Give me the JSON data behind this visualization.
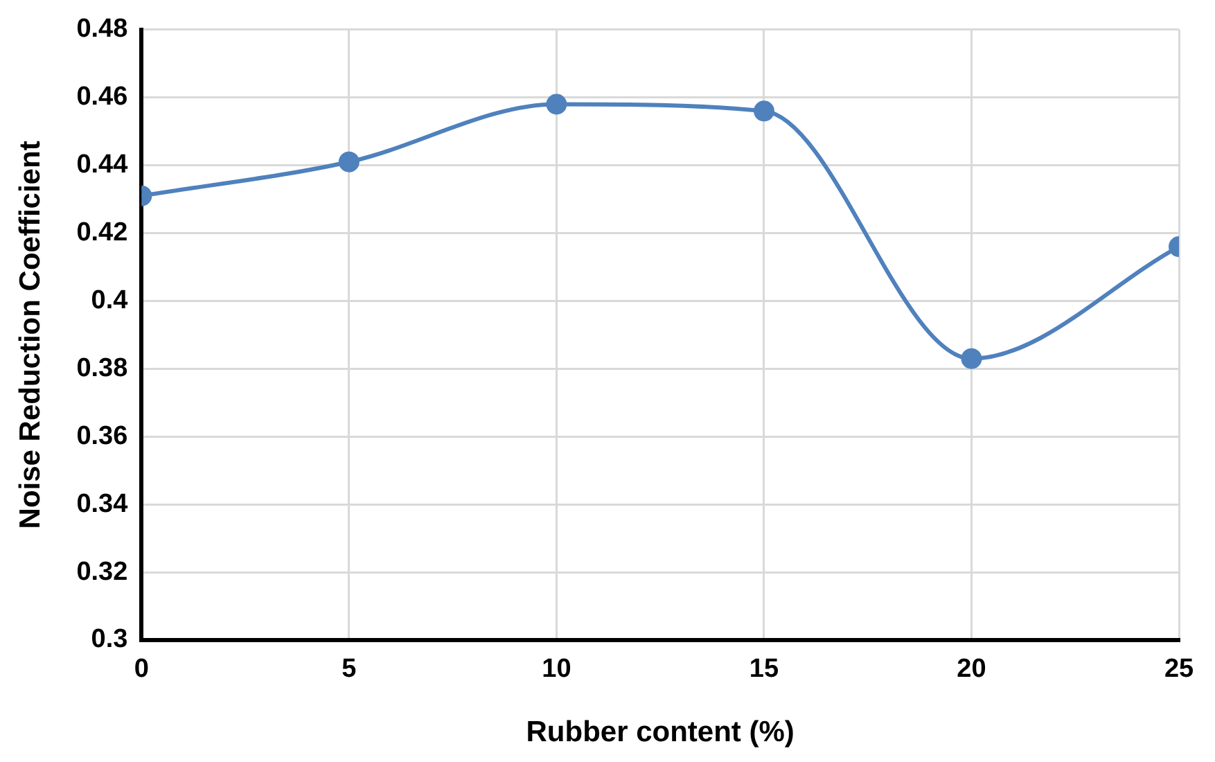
{
  "chart_data": {
    "type": "line",
    "xlabel": "Rubber content (%)",
    "ylabel": "Noise Reduction Coefficient",
    "x": [
      0,
      5,
      10,
      15,
      20,
      25
    ],
    "series": [
      {
        "color": "#4f81bd",
        "values": [
          0.431,
          0.441,
          0.458,
          0.456,
          0.383,
          0.416
        ]
      }
    ],
    "xlim": [
      0,
      25
    ],
    "xticks": [
      0,
      5,
      10,
      15,
      20,
      25
    ],
    "ylim": [
      0.3,
      0.48
    ],
    "yticks": [
      {
        "value": 0.3,
        "label": "0.3"
      },
      {
        "value": 0.32,
        "label": "0.32"
      },
      {
        "value": 0.34,
        "label": "0.34"
      },
      {
        "value": 0.36,
        "label": "0.36"
      },
      {
        "value": 0.38,
        "label": "0.38"
      },
      {
        "value": 0.4,
        "label": "0.4"
      },
      {
        "value": 0.42,
        "label": "0.42"
      },
      {
        "value": 0.44,
        "label": "0.44"
      },
      {
        "value": 0.46,
        "label": "0.46"
      },
      {
        "value": 0.48,
        "label": "0.48"
      }
    ],
    "grid": true,
    "legend": false,
    "marker": "circle",
    "line_style": "solid"
  }
}
